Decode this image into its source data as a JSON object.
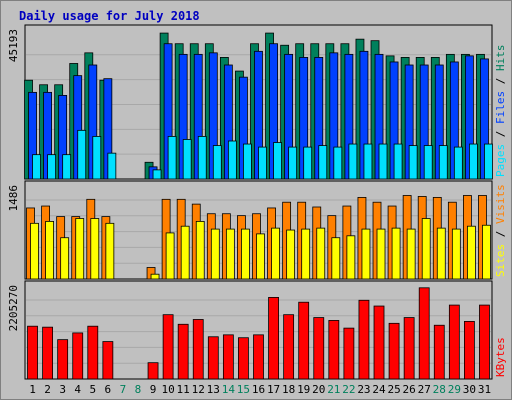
{
  "chart_data": {
    "type": "bar",
    "title": "Daily usage for July 2018",
    "days": [
      1,
      2,
      3,
      4,
      5,
      6,
      7,
      8,
      9,
      10,
      11,
      12,
      13,
      14,
      15,
      16,
      17,
      18,
      19,
      20,
      21,
      22,
      23,
      24,
      25,
      26,
      27,
      28,
      29,
      30,
      31
    ],
    "weekend_days": [
      7,
      8,
      14,
      15,
      21,
      22,
      28,
      29
    ],
    "panels": [
      {
        "id": "pages-files-hits",
        "max_label": "45193",
        "ymax": 45193,
        "legend": [
          "Pages",
          "Files",
          "Hits"
        ],
        "series": [
          {
            "name": "Hits",
            "color": "#00805c",
            "values": [
              0.65,
              0.62,
              0.62,
              0.76,
              0.83,
              0.65,
              0,
              0,
              0.11,
              0.96,
              0.89,
              0.89,
              0.89,
              0.8,
              0.71,
              0.89,
              0.96,
              0.88,
              0.89,
              0.89,
              0.89,
              0.89,
              0.92,
              0.91,
              0.81,
              0.8,
              0.8,
              0.8,
              0.82,
              0.82,
              0.82
            ]
          },
          {
            "name": "Files",
            "color": "#0040ff",
            "values": [
              0.57,
              0.57,
              0.55,
              0.68,
              0.75,
              0.66,
              0,
              0,
              0.08,
              0.89,
              0.82,
              0.82,
              0.83,
              0.75,
              0.67,
              0.84,
              0.89,
              0.82,
              0.8,
              0.8,
              0.83,
              0.82,
              0.84,
              0.82,
              0.77,
              0.75,
              0.75,
              0.75,
              0.77,
              0.81,
              0.79
            ]
          },
          {
            "name": "Pages",
            "color": "#00e0ff",
            "values": [
              0.16,
              0.16,
              0.16,
              0.32,
              0.28,
              0.17,
              0,
              0,
              0.06,
              0.28,
              0.26,
              0.28,
              0.22,
              0.25,
              0.23,
              0.21,
              0.24,
              0.21,
              0.21,
              0.22,
              0.21,
              0.23,
              0.23,
              0.23,
              0.23,
              0.22,
              0.22,
              0.22,
              0.21,
              0.23,
              0.23
            ]
          }
        ]
      },
      {
        "id": "sites-visits",
        "max_label": "1486",
        "ymax": 1486,
        "legend": [
          "Sites",
          "Visits"
        ],
        "series": [
          {
            "name": "Visits",
            "color": "#ff8000",
            "values": [
              0.74,
              0.76,
              0.65,
              0.65,
              0.83,
              0.65,
              0,
              0,
              0.12,
              0.83,
              0.83,
              0.78,
              0.68,
              0.68,
              0.66,
              0.68,
              0.74,
              0.8,
              0.8,
              0.75,
              0.66,
              0.76,
              0.85,
              0.8,
              0.76,
              0.87,
              0.86,
              0.85,
              0.8,
              0.87,
              0.87
            ]
          },
          {
            "name": "Sites",
            "color": "#ffff00",
            "values": [
              0.58,
              0.6,
              0.43,
              0.63,
              0.63,
              0.58,
              0,
              0,
              0.05,
              0.48,
              0.55,
              0.6,
              0.52,
              0.52,
              0.52,
              0.47,
              0.53,
              0.51,
              0.52,
              0.53,
              0.43,
              0.45,
              0.52,
              0.52,
              0.53,
              0.52,
              0.63,
              0.53,
              0.52,
              0.55,
              0.56
            ]
          }
        ]
      },
      {
        "id": "kbytes",
        "max_label": "2205270",
        "ymax": 2205270,
        "legend": [
          "KBytes"
        ],
        "series": [
          {
            "name": "KBytes",
            "color": "#ff0000",
            "values": [
              0.55,
              0.54,
              0.41,
              0.48,
              0.55,
              0.39,
              0,
              0,
              0.17,
              0.67,
              0.57,
              0.62,
              0.44,
              0.46,
              0.43,
              0.46,
              0.85,
              0.67,
              0.8,
              0.64,
              0.61,
              0.53,
              0.82,
              0.76,
              0.58,
              0.64,
              0.95,
              0.56,
              0.77,
              0.6,
              0.77
            ]
          }
        ]
      }
    ]
  }
}
